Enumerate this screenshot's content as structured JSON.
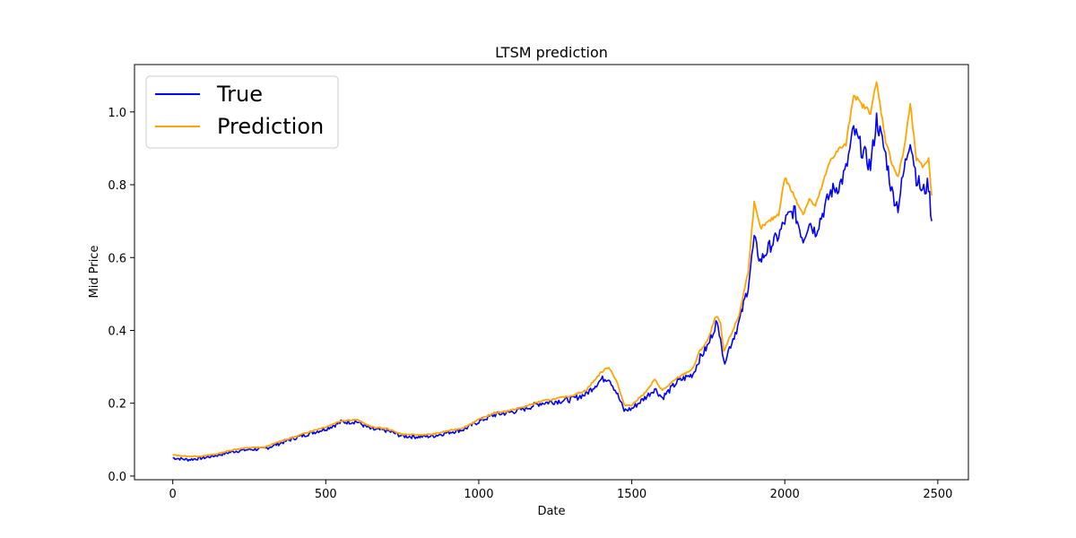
{
  "chart_data": {
    "type": "line",
    "title": "LTSM prediction",
    "xlabel": "Date",
    "ylabel": "Mid Price",
    "xlim": [
      -125,
      2600
    ],
    "ylim": [
      -0.01,
      1.13
    ],
    "xticks": [
      0,
      500,
      1000,
      1500,
      2000,
      2500
    ],
    "yticks": [
      0.0,
      0.2,
      0.4,
      0.6,
      0.8,
      1.0
    ],
    "xtick_labels": [
      "0",
      "500",
      "1000",
      "1500",
      "2000",
      "2500"
    ],
    "ytick_labels": [
      "0.0",
      "0.2",
      "0.4",
      "0.6",
      "0.8",
      "1.0"
    ],
    "legend_position": "top-left",
    "series": [
      {
        "name": "True",
        "color": "#0000ff",
        "x": [
          0,
          50,
          100,
          150,
          200,
          250,
          300,
          350,
          400,
          450,
          500,
          550,
          600,
          650,
          700,
          750,
          800,
          850,
          900,
          950,
          1000,
          1050,
          1100,
          1150,
          1200,
          1250,
          1300,
          1350,
          1400,
          1425,
          1450,
          1475,
          1500,
          1550,
          1575,
          1600,
          1650,
          1700,
          1720,
          1750,
          1775,
          1790,
          1800,
          1850,
          1880,
          1900,
          1920,
          1950,
          1980,
          2000,
          2030,
          2060,
          2080,
          2100,
          2150,
          2180,
          2200,
          2225,
          2250,
          2280,
          2300,
          2330,
          2350,
          2370,
          2390,
          2410,
          2430,
          2450,
          2470,
          2480
        ],
        "values": [
          0.05,
          0.045,
          0.05,
          0.058,
          0.068,
          0.073,
          0.075,
          0.09,
          0.105,
          0.118,
          0.13,
          0.148,
          0.15,
          0.128,
          0.125,
          0.11,
          0.108,
          0.11,
          0.12,
          0.128,
          0.15,
          0.168,
          0.175,
          0.185,
          0.2,
          0.205,
          0.21,
          0.225,
          0.265,
          0.27,
          0.23,
          0.18,
          0.185,
          0.22,
          0.24,
          0.215,
          0.26,
          0.28,
          0.32,
          0.36,
          0.42,
          0.39,
          0.31,
          0.42,
          0.52,
          0.65,
          0.59,
          0.63,
          0.66,
          0.7,
          0.73,
          0.65,
          0.7,
          0.67,
          0.78,
          0.8,
          0.84,
          0.95,
          0.9,
          0.85,
          0.98,
          0.88,
          0.78,
          0.74,
          0.84,
          0.93,
          0.82,
          0.78,
          0.8,
          0.7
        ]
      },
      {
        "name": "Prediction",
        "color": "#ffa500",
        "x": [
          0,
          50,
          100,
          150,
          200,
          250,
          300,
          350,
          400,
          450,
          500,
          550,
          600,
          650,
          700,
          750,
          800,
          850,
          900,
          950,
          1000,
          1050,
          1100,
          1150,
          1200,
          1250,
          1300,
          1350,
          1400,
          1425,
          1450,
          1475,
          1500,
          1550,
          1575,
          1600,
          1650,
          1700,
          1720,
          1750,
          1775,
          1790,
          1800,
          1850,
          1880,
          1900,
          1920,
          1950,
          1980,
          2000,
          2030,
          2060,
          2080,
          2100,
          2150,
          2180,
          2200,
          2225,
          2250,
          2280,
          2300,
          2330,
          2350,
          2370,
          2390,
          2410,
          2430,
          2450,
          2470,
          2480
        ],
        "values": [
          0.058,
          0.054,
          0.055,
          0.062,
          0.073,
          0.078,
          0.079,
          0.095,
          0.108,
          0.123,
          0.135,
          0.152,
          0.155,
          0.135,
          0.13,
          0.115,
          0.113,
          0.115,
          0.124,
          0.133,
          0.155,
          0.173,
          0.18,
          0.19,
          0.205,
          0.212,
          0.22,
          0.235,
          0.285,
          0.3,
          0.262,
          0.195,
          0.195,
          0.235,
          0.265,
          0.235,
          0.27,
          0.295,
          0.34,
          0.375,
          0.44,
          0.42,
          0.34,
          0.44,
          0.56,
          0.75,
          0.68,
          0.7,
          0.72,
          0.82,
          0.77,
          0.72,
          0.76,
          0.74,
          0.87,
          0.9,
          0.91,
          1.05,
          1.02,
          1.0,
          1.08,
          0.92,
          0.86,
          0.82,
          0.9,
          1.02,
          0.87,
          0.85,
          0.87,
          0.77
        ]
      }
    ]
  }
}
